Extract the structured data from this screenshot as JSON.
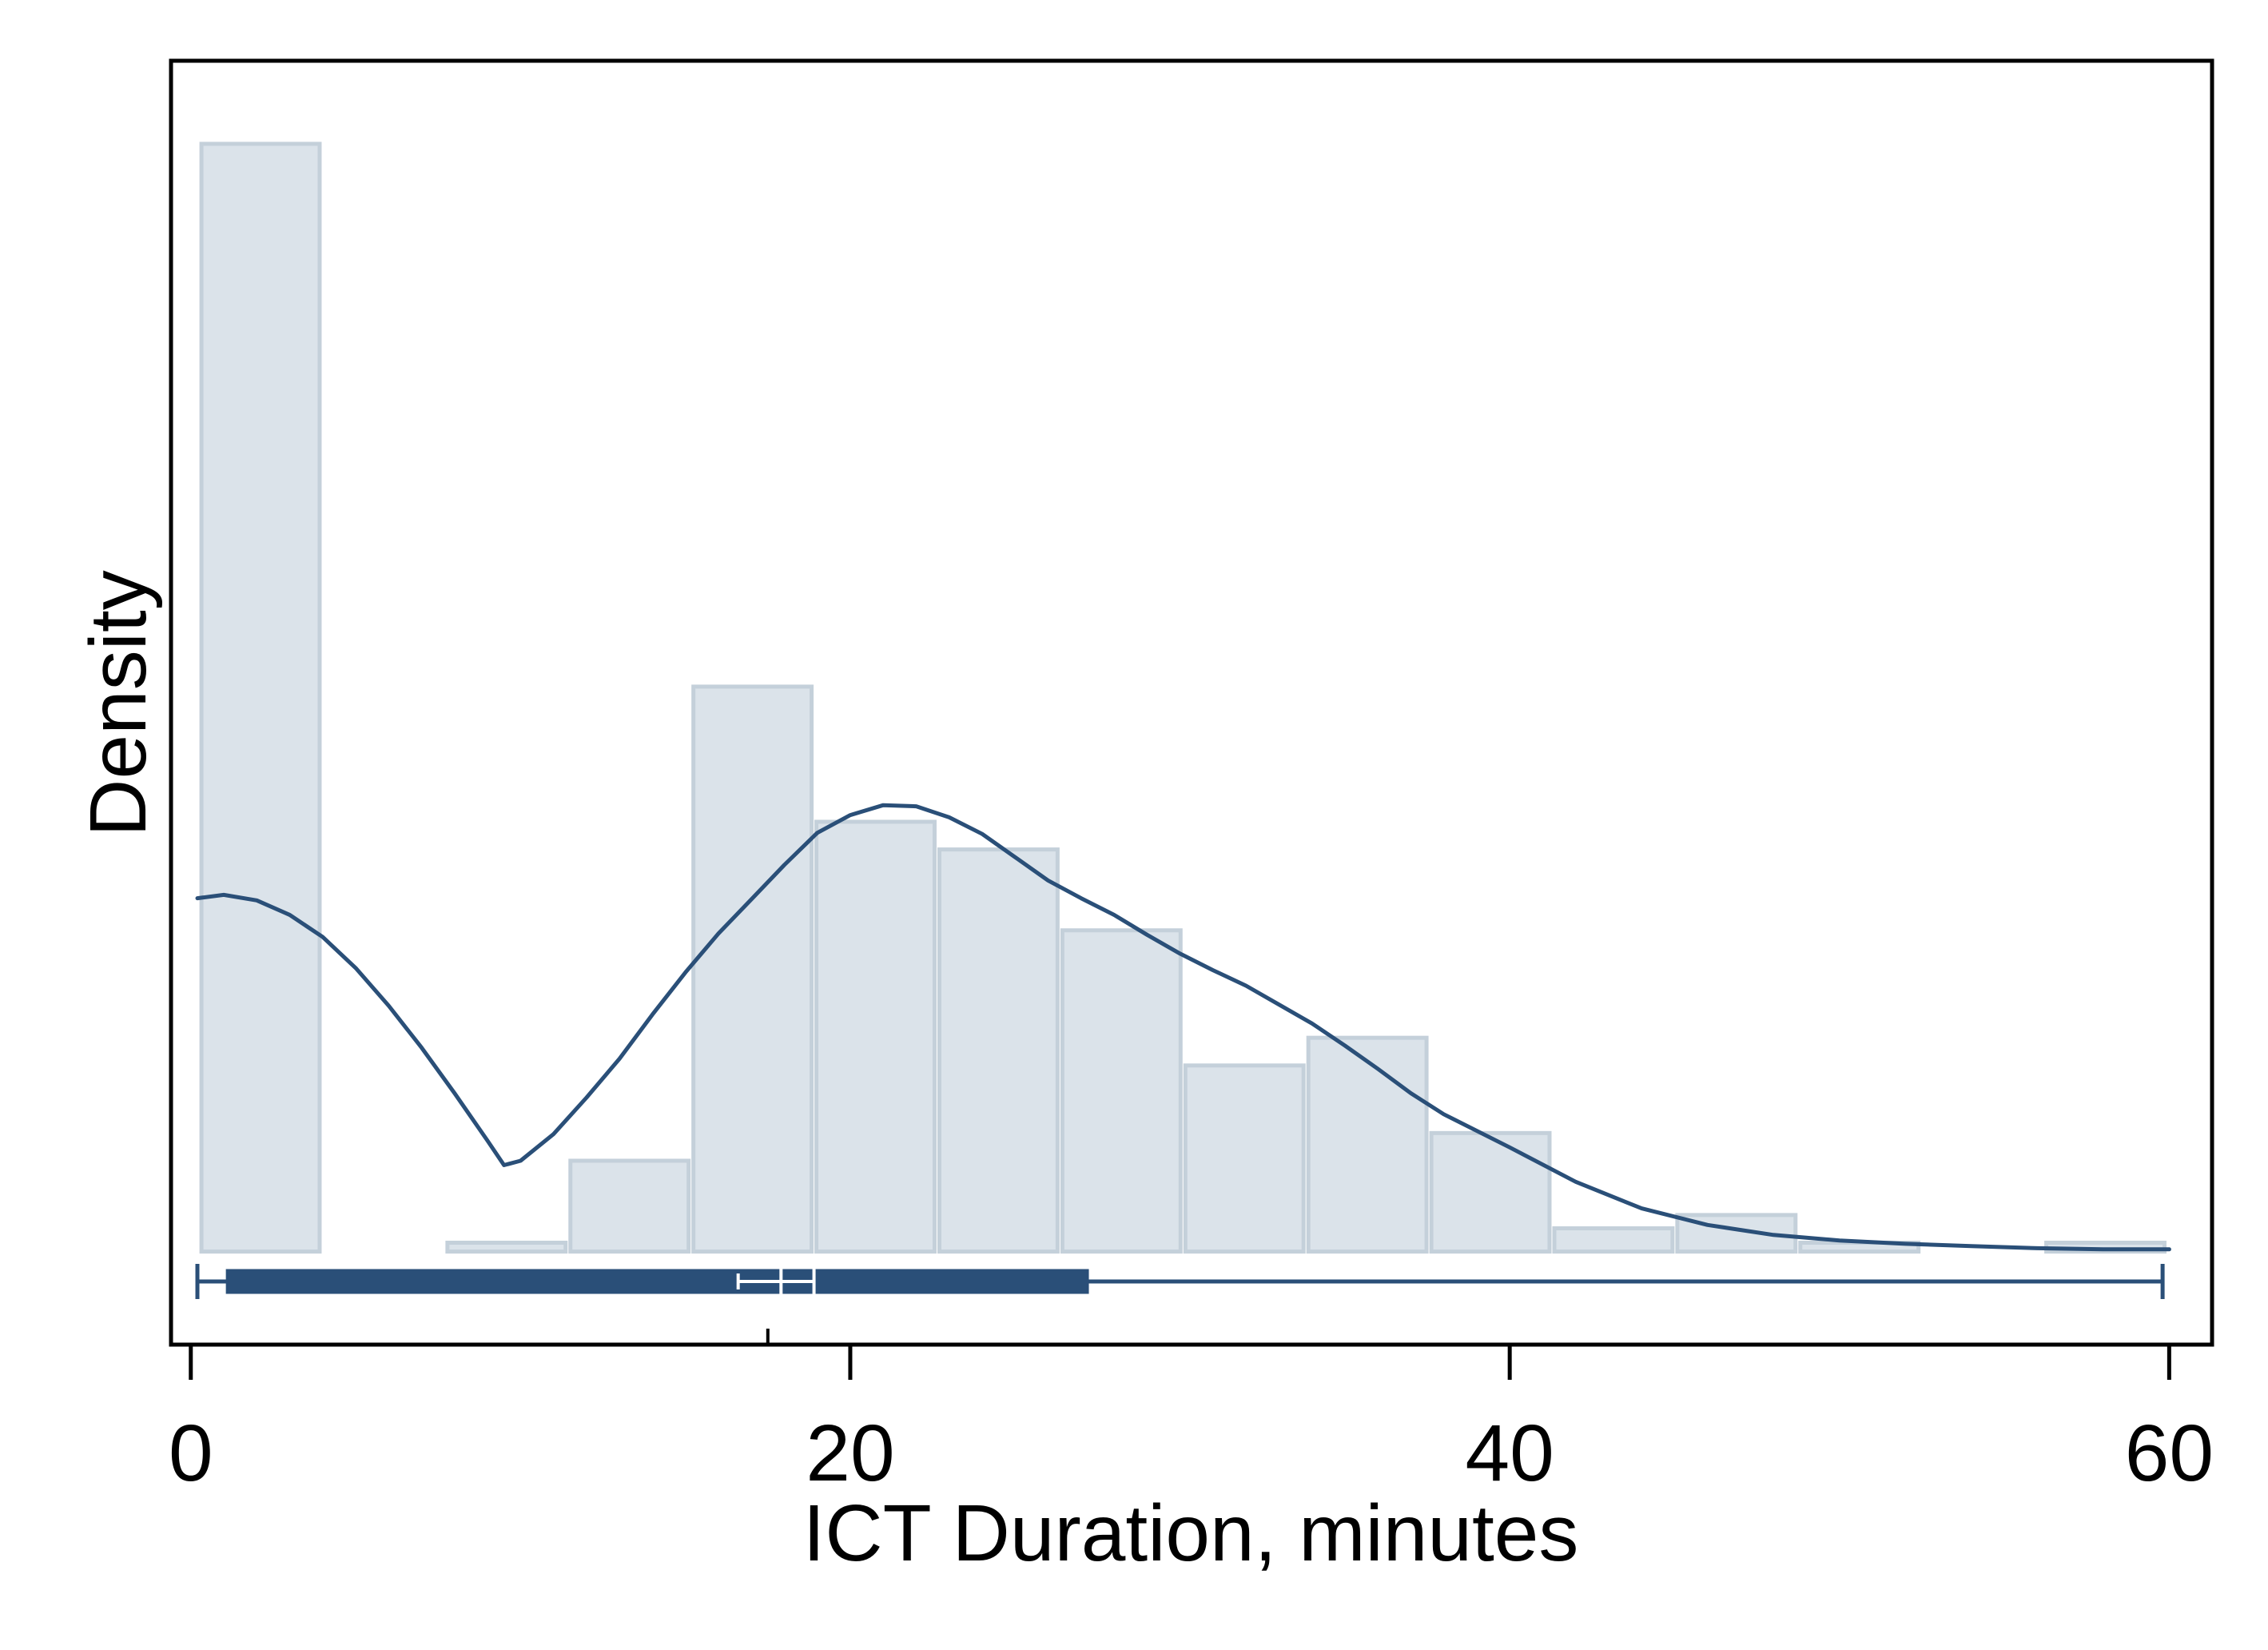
{
  "chart_data": {
    "type": "histogram",
    "title": "",
    "xlabel": "ICT Duration, minutes",
    "ylabel": "Density",
    "xlim": [
      -0.6,
      61.3
    ],
    "ylim": [
      -0.0084,
      0.1075
    ],
    "x_ticks": [
      0,
      20,
      40,
      60
    ],
    "x_tick_labels": [
      "0",
      "20",
      "40",
      "60"
    ],
    "y_ticks_shown": false,
    "grid": false,
    "legend": "none",
    "histogram": {
      "bin_width": 3.73,
      "bins": [
        {
          "start": 0.25,
          "end": 3.98,
          "density": 0.1
        },
        {
          "start": 7.71,
          "end": 11.44,
          "density": 0.0008
        },
        {
          "start": 11.44,
          "end": 15.17,
          "density": 0.0082
        },
        {
          "start": 15.17,
          "end": 18.9,
          "density": 0.051
        },
        {
          "start": 18.9,
          "end": 22.63,
          "density": 0.0388
        },
        {
          "start": 22.63,
          "end": 26.36,
          "density": 0.0363
        },
        {
          "start": 26.36,
          "end": 30.09,
          "density": 0.029
        },
        {
          "start": 30.09,
          "end": 33.82,
          "density": 0.0168
        },
        {
          "start": 33.82,
          "end": 37.55,
          "density": 0.0193
        },
        {
          "start": 37.55,
          "end": 41.28,
          "density": 0.0107
        },
        {
          "start": 41.28,
          "end": 45.01,
          "density": 0.0021
        },
        {
          "start": 45.01,
          "end": 48.74,
          "density": 0.0033
        },
        {
          "start": 48.74,
          "end": 52.47,
          "density": 0.0008
        },
        {
          "start": 56.2,
          "end": 59.93,
          "density": 0.0008
        }
      ]
    },
    "kde": {
      "name": "",
      "x": [
        0.2,
        1.0,
        2.0,
        3.0,
        4.0,
        5.0,
        6.0,
        7.0,
        8.0,
        9.0,
        9.5,
        10.0,
        11.0,
        12.0,
        13.0,
        14.0,
        15.0,
        16.0,
        17.0,
        18.0,
        19.0,
        20.0,
        21.0,
        22.0,
        23.0,
        24.0,
        25.0,
        26.0,
        27.0,
        28.0,
        29.0,
        30.0,
        31.0,
        32.0,
        33.0,
        34.0,
        35.0,
        36.0,
        37.0,
        38.0,
        40.0,
        42.0,
        44.0,
        46.0,
        48.0,
        50.0,
        52.0,
        54.0,
        56.0,
        58.0,
        60.0
      ],
      "y": [
        0.0319,
        0.0322,
        0.0317,
        0.0304,
        0.0284,
        0.0256,
        0.0222,
        0.0184,
        0.0143,
        0.01,
        0.0078,
        0.0082,
        0.0106,
        0.0139,
        0.0174,
        0.0214,
        0.0252,
        0.0287,
        0.0318,
        0.0349,
        0.0378,
        0.0394,
        0.0403,
        0.0402,
        0.0392,
        0.0377,
        0.0356,
        0.0335,
        0.0319,
        0.0304,
        0.0286,
        0.0269,
        0.0254,
        0.024,
        0.0223,
        0.0206,
        0.0186,
        0.0165,
        0.0143,
        0.0124,
        0.0094,
        0.0063,
        0.0039,
        0.0024,
        0.0015,
        0.001,
        0.0007,
        0.0005,
        0.0003,
        0.0002,
        0.0002
      ]
    },
    "boxplot": {
      "min": 0.2,
      "q1": 1.1,
      "median": 17.9,
      "q3": 27.2,
      "max": 59.8,
      "mean": 17.5,
      "mean_ci": [
        16.6,
        18.9
      ]
    },
    "colors": {
      "bar_fill": "#dbe3ea",
      "bar_edge": "#c4d0da",
      "kde_line": "#2a4f78",
      "box": "#2a4f78",
      "axis": "#000000"
    }
  }
}
